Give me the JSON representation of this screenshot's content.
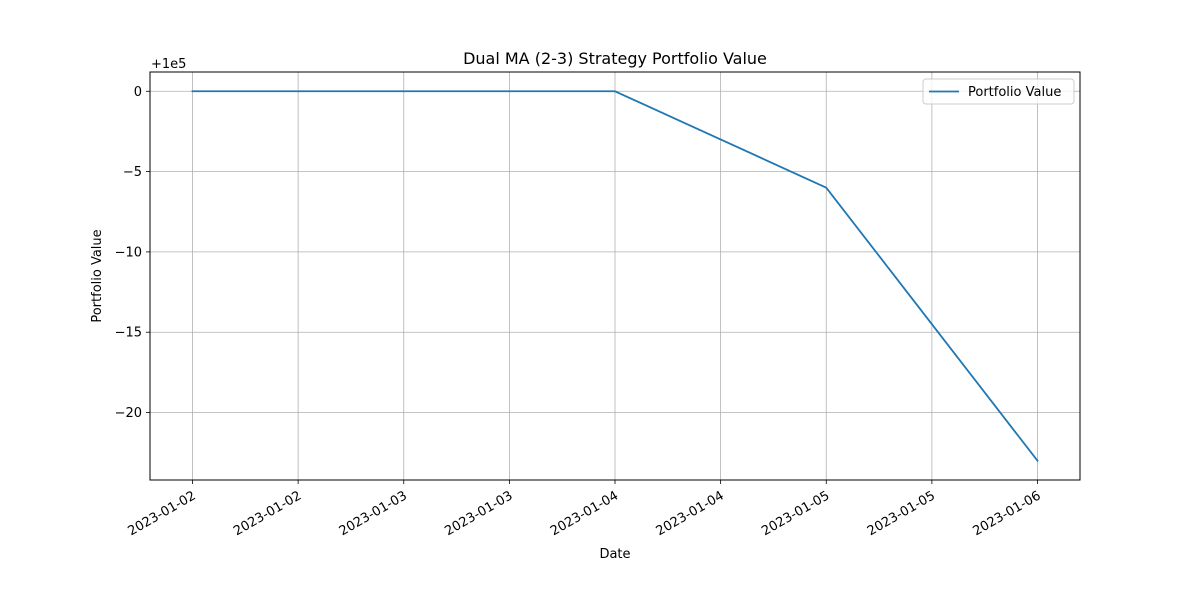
{
  "chart_data": {
    "type": "line",
    "title": "Dual MA (2-3) Strategy Portfolio Value",
    "xlabel": "Date",
    "ylabel": "Portfolio Value",
    "offset_label": "+1e5",
    "x_tick_labels": [
      "2023-01-02",
      "2023-01-02",
      "2023-01-03",
      "2023-01-03",
      "2023-01-04",
      "2023-01-04",
      "2023-01-05",
      "2023-01-05",
      "2023-01-06"
    ],
    "y_ticks": [
      0,
      -5,
      -10,
      -15,
      -20
    ],
    "y_tick_labels": [
      "0",
      "−5",
      "−10",
      "−15",
      "−20"
    ],
    "x": [
      "2023-01-02",
      "2023-01-03",
      "2023-01-04",
      "2023-01-05",
      "2023-01-06"
    ],
    "series": [
      {
        "name": "Portfolio Value",
        "color": "#1f77b4",
        "values": [
          0,
          0,
          0,
          -6,
          -23
        ]
      }
    ],
    "ylim": [
      -24.2,
      1.2
    ],
    "grid": true,
    "legend_position": "top-right"
  }
}
